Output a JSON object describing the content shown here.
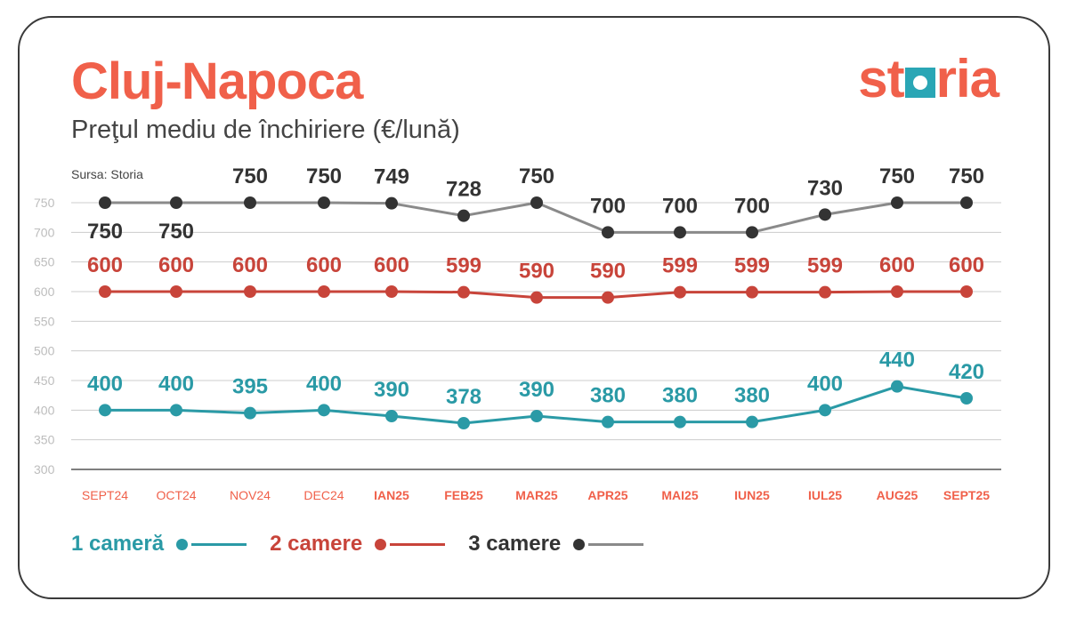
{
  "title": "Cluj-Napoca",
  "subtitle": "Preţul mediu de închiriere (€/lună)",
  "source": "Sursa: Storia",
  "logo": {
    "pre": "st",
    "post": "ria"
  },
  "colors": {
    "title": "#f0604a",
    "s1": "#2a9aa6",
    "s2": "#c8443a",
    "s3": "#8a8a8a",
    "s3dot": "#333333",
    "s3label": "#333333",
    "axis": "#cccccc",
    "xlabel": "#f0604a"
  },
  "chart_data": {
    "type": "line",
    "categories": [
      "SEPT24",
      "OCT24",
      "NOV24",
      "DEC24",
      "IAN25",
      "FEB25",
      "MAR25",
      "APR25",
      "MAI25",
      "IUN25",
      "IUL25",
      "AUG25",
      "SEPT25"
    ],
    "yticks": [
      "750",
      "700",
      "650",
      "600",
      "550",
      "500",
      "450",
      "400",
      "350",
      "300"
    ],
    "ylim": [
      300,
      750
    ],
    "grid": true,
    "legend_position": "bottom-left",
    "series": [
      {
        "name": "1 cameră",
        "values": [
          400,
          400,
          395,
          400,
          390,
          378,
          390,
          380,
          380,
          380,
          400,
          440,
          420
        ]
      },
      {
        "name": "2 camere",
        "values": [
          600,
          600,
          600,
          600,
          600,
          599,
          590,
          590,
          599,
          599,
          599,
          600,
          600
        ]
      },
      {
        "name": "3 camere",
        "values": [
          750,
          750,
          750,
          750,
          749,
          728,
          750,
          700,
          700,
          700,
          730,
          750,
          750
        ]
      }
    ]
  }
}
